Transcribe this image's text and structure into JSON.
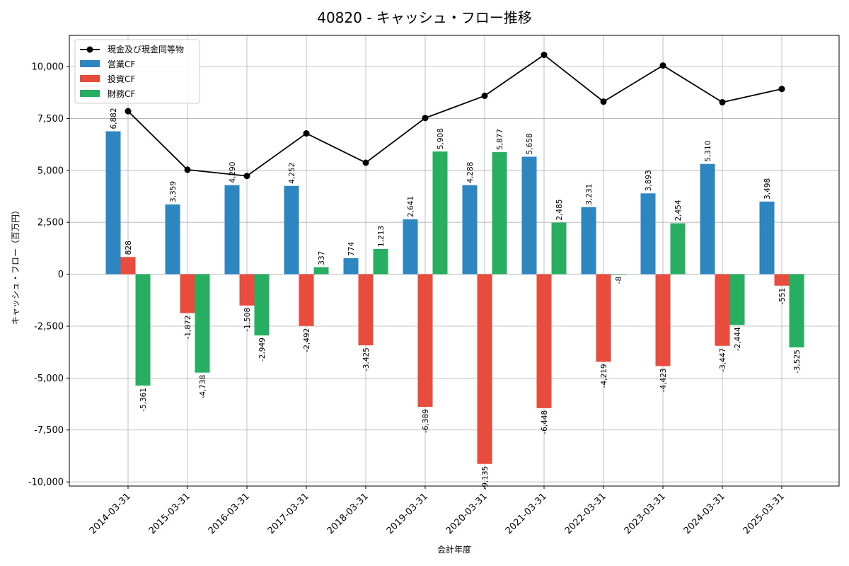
{
  "chart_data": {
    "type": "bar",
    "title": "40820 - キャッシュ・フロー推移",
    "xlabel": "会計年度",
    "ylabel": "キャッシュ・フロー（百万円）",
    "ylim": [
      -10200,
      11500
    ],
    "yticks": [
      -10000,
      -7500,
      -5000,
      -2500,
      0,
      2500,
      5000,
      7500,
      10000
    ],
    "ytick_labels": [
      "-10,000",
      "-7,500",
      "-5,000",
      "-2,500",
      "0",
      "2,500",
      "5,000",
      "7,500",
      "10,000"
    ],
    "grid": true,
    "legend_position": "top-left",
    "categories": [
      "2014-03-31",
      "2015-03-31",
      "2016-03-31",
      "2017-03-31",
      "2018-03-31",
      "2019-03-31",
      "2020-03-31",
      "2021-03-31",
      "2022-03-31",
      "2023-03-31",
      "2024-03-31",
      "2025-03-31"
    ],
    "series": [
      {
        "name": "営業CF",
        "type": "bar",
        "color": "#2e86c1",
        "values": [
          6882,
          3359,
          4290,
          4252,
          774,
          2641,
          4288,
          5658,
          3231,
          3893,
          5310,
          3498
        ],
        "labels": [
          "6,882",
          "3,359",
          "4,290",
          "4,252",
          "774",
          "2,641",
          "4,288",
          "5,658",
          "3,231",
          "3,893",
          "5,310",
          "3,498"
        ]
      },
      {
        "name": "投資CF",
        "type": "bar",
        "color": "#e74c3c",
        "values": [
          828,
          -1872,
          -1508,
          -2492,
          -3425,
          -6389,
          -9135,
          -6448,
          -4219,
          -4423,
          -3447,
          -551
        ],
        "labels": [
          "828",
          "-1,872",
          "-1,508",
          "-2,492",
          "-3,425",
          "-6,389",
          "-9,135",
          "-6,448",
          "-4,219",
          "-4,423",
          "-3,447",
          "-551"
        ]
      },
      {
        "name": "財務CF",
        "type": "bar",
        "color": "#27ae60",
        "values": [
          -5361,
          -4738,
          -2949,
          337,
          1213,
          5908,
          5877,
          2485,
          -8,
          2454,
          -2444,
          -3525
        ],
        "labels": [
          "-5,361",
          "-4,738",
          "-2,949",
          "337",
          "1,213",
          "5,908",
          "5,877",
          "2,485",
          "-8",
          "2,454",
          "-2,444",
          "-3,525"
        ]
      },
      {
        "name": "現金及び現金同等物",
        "type": "line",
        "color": "#000000",
        "values": [
          7850,
          5030,
          4730,
          6780,
          5370,
          7520,
          8590,
          10560,
          8310,
          10050,
          8280,
          8920
        ]
      }
    ]
  }
}
